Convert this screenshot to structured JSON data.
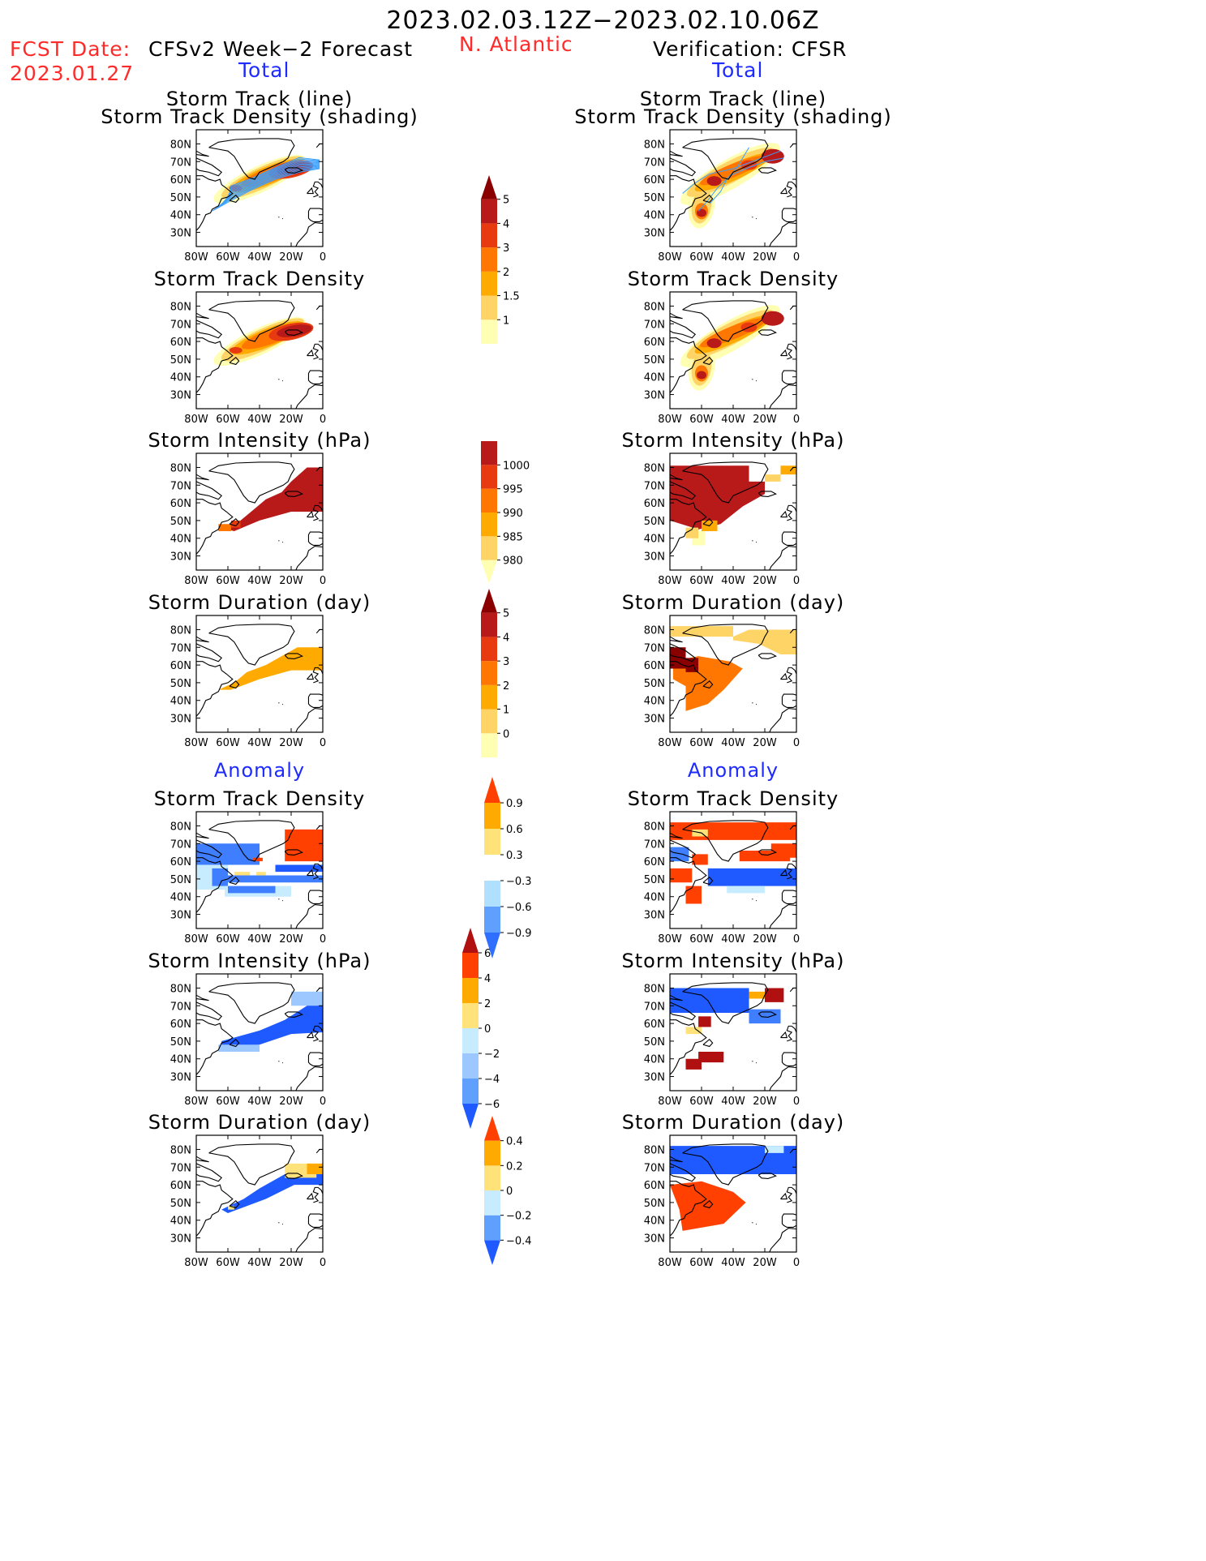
{
  "title": "2023.02.03.12Z−2023.02.10.06Z",
  "fcst_label": "FCST Date:",
  "fcst_date": "2023.01.27",
  "left_header": "CFSv2 Week−2 Forecast",
  "region": "N. Atlantic",
  "right_header": "Verification: CFSR",
  "total_label": "Total",
  "anomaly_label": "Anomaly",
  "panels": {
    "track_line": "Storm Track (line)",
    "track_shading": "Storm Track Density (shading)",
    "density": "Storm Track Density",
    "intensity": "Storm Intensity (hPa)",
    "duration": "Storm Duration (day)"
  },
  "lat_labels": [
    "80N",
    "70N",
    "60N",
    "50N",
    "40N",
    "30N"
  ],
  "lon_labels": [
    "80W",
    "60W",
    "40W",
    "20W",
    "0"
  ],
  "colorbars": {
    "density_total": {
      "labels": [
        "5",
        "4",
        "3",
        "2",
        "1.5",
        "1"
      ],
      "colors": [
        "#ffffb3",
        "#ffd466",
        "#ffaa00",
        "#ff7700",
        "#e83a10",
        "#b81a1a",
        "#8a0000"
      ]
    },
    "intensity_total": {
      "labels": [
        "1000",
        "995",
        "990",
        "985",
        "980"
      ],
      "colors": [
        "#ffffb3",
        "#ffd466",
        "#ffaa00",
        "#ff7700",
        "#e83a10",
        "#b81a1a"
      ]
    },
    "duration_total": {
      "labels": [
        "5",
        "4",
        "3",
        "2",
        "1",
        "0"
      ],
      "colors": [
        "#ffffb3",
        "#ffd466",
        "#ffaa00",
        "#ff7700",
        "#e83a10",
        "#b81a1a",
        "#8a0000"
      ]
    },
    "density_anom": {
      "labels": [
        "0.9",
        "0.6",
        "0.3",
        "−0.3",
        "−0.6",
        "−0.9"
      ],
      "colors": [
        "#2f6fff",
        "#5fa0ff",
        "#b0e0ff",
        "#ffffff",
        "#ffe27a",
        "#ffaa00",
        "#ff4000"
      ]
    },
    "intensity_anom": {
      "labels": [
        "6",
        "4",
        "2",
        "0",
        "−2",
        "−4",
        "−6"
      ],
      "colors": [
        "#1e5aff",
        "#5fa0ff",
        "#9cc8ff",
        "#c8ecff",
        "#ffe27a",
        "#ffaa00",
        "#ff4000",
        "#b01010"
      ]
    },
    "duration_anom": {
      "labels": [
        "0.4",
        "0.2",
        "0",
        "−0.2",
        "−0.4"
      ],
      "colors": [
        "#1e5aff",
        "#5fa0ff",
        "#c8ecff",
        "#ffe27a",
        "#ffaa00",
        "#ff4000"
      ]
    }
  },
  "colors": {
    "title_red": "#ff2b2b",
    "label_blue": "#1e2bff",
    "track_line": "#3aa0ff"
  }
}
